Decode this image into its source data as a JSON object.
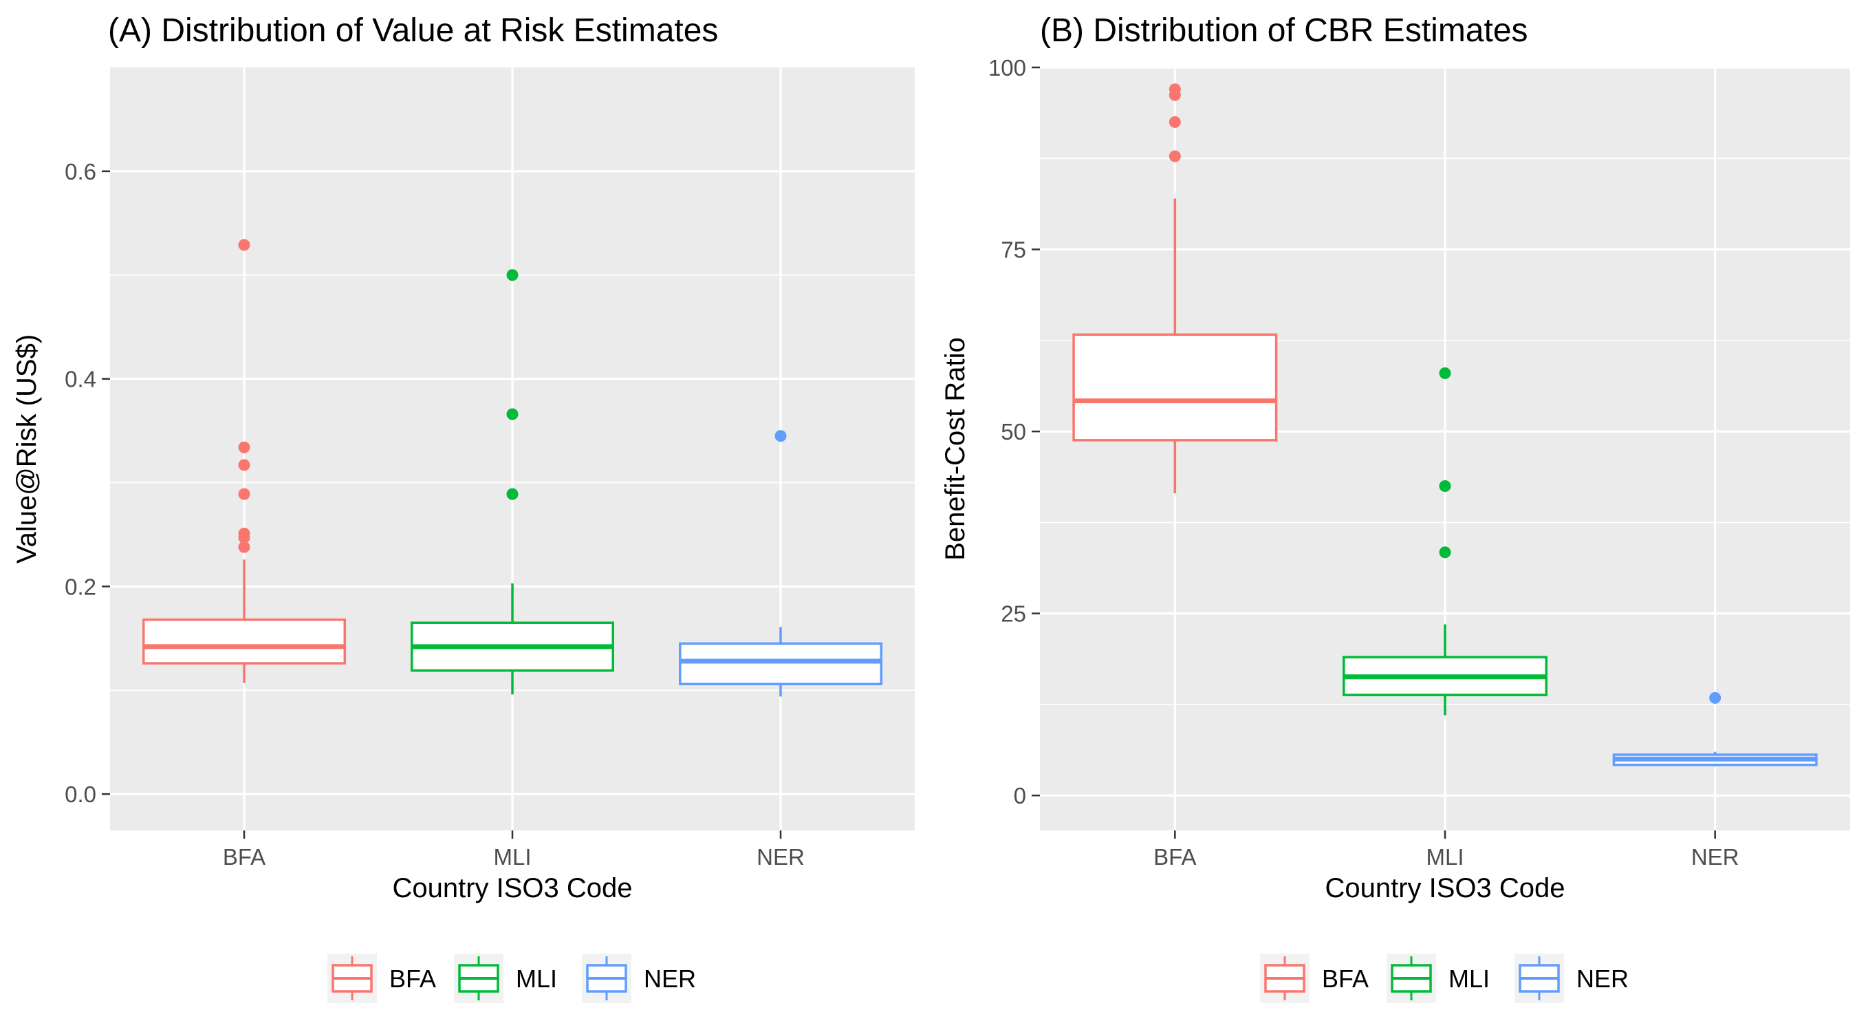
{
  "colors": {
    "BFA": "#F8766D",
    "MLI": "#00BA38",
    "NER": "#619CFF",
    "panel_background": "#EBEBEB",
    "grid": "#FFFFFF",
    "tick_text": "#4D4D4D"
  },
  "chart_data": [
    {
      "type": "box",
      "title": "(A) Distribution of Value at Risk Estimates",
      "xlabel": "Country ISO3 Code",
      "ylabel": "Value@Risk (US$)",
      "categories": [
        "BFA",
        "MLI",
        "NER"
      ],
      "ylim": [
        -0.035,
        0.7
      ],
      "y_ticks": [
        0.0,
        0.2,
        0.4,
        0.6
      ],
      "y_tick_labels": [
        "0.0",
        "0.2",
        "0.4",
        "0.6"
      ],
      "grid": true,
      "legend_position": "bottom",
      "legend_entries": [
        "BFA",
        "MLI",
        "NER"
      ],
      "boxes": [
        {
          "name": "BFA",
          "whisker_low": 0.107,
          "q1": 0.126,
          "median": 0.142,
          "q3": 0.168,
          "whisker_high": 0.226,
          "outliers": [
            0.529,
            0.334,
            0.317,
            0.289,
            0.251,
            0.247,
            0.238
          ]
        },
        {
          "name": "MLI",
          "whisker_low": 0.096,
          "q1": 0.119,
          "median": 0.142,
          "q3": 0.165,
          "whisker_high": 0.203,
          "outliers": [
            0.5,
            0.366,
            0.289
          ]
        },
        {
          "name": "NER",
          "whisker_low": 0.094,
          "q1": 0.106,
          "median": 0.128,
          "q3": 0.145,
          "whisker_high": 0.161,
          "outliers": [
            0.345
          ]
        }
      ]
    },
    {
      "type": "box",
      "title": "(B) Distribution of CBR Estimates",
      "xlabel": "Country ISO3 Code",
      "ylabel": "Benefit-Cost Ratio",
      "categories": [
        "BFA",
        "MLI",
        "NER"
      ],
      "ylim": [
        -4.8,
        100
      ],
      "y_ticks": [
        0,
        25,
        50,
        75,
        100
      ],
      "y_tick_labels": [
        "0",
        "25",
        "50",
        "75",
        "100"
      ],
      "grid": true,
      "legend_position": "bottom",
      "legend_entries": [
        "BFA",
        "MLI",
        "NER"
      ],
      "boxes": [
        {
          "name": "BFA",
          "whisker_low": 41.5,
          "q1": 48.8,
          "median": 54.2,
          "q3": 63.3,
          "whisker_high": 82.0,
          "outliers": [
            97.0,
            96.2,
            92.5,
            87.8
          ]
        },
        {
          "name": "MLI",
          "whisker_low": 11.0,
          "q1": 13.8,
          "median": 16.3,
          "q3": 19.0,
          "whisker_high": 23.5,
          "outliers": [
            58.0,
            42.5,
            33.4
          ]
        },
        {
          "name": "NER",
          "whisker_low": 4.0,
          "q1": 4.2,
          "median": 5.0,
          "q3": 5.6,
          "whisker_high": 6.0,
          "outliers": [
            13.4
          ]
        }
      ]
    }
  ]
}
